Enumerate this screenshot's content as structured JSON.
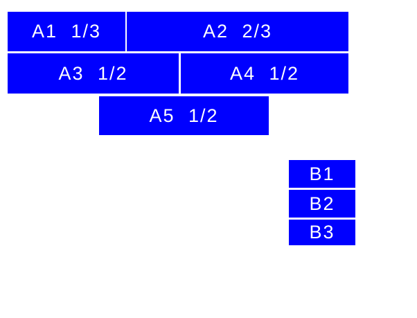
{
  "canvas": {
    "background_color": "#ffffff"
  },
  "style": {
    "block_fill_color": "#0000ff",
    "block_text_color": "#ffffff"
  },
  "blocks": {
    "a1": {
      "label": "A1 1/3"
    },
    "a2": {
      "label": "A2 2/3"
    },
    "a3": {
      "label": "A3 1/2"
    },
    "a4": {
      "label": "A4 1/2"
    },
    "a5": {
      "label": "A5 1/2"
    },
    "b1": {
      "label": "B1"
    },
    "b2": {
      "label": "B2"
    },
    "b3": {
      "label": "B3"
    }
  }
}
